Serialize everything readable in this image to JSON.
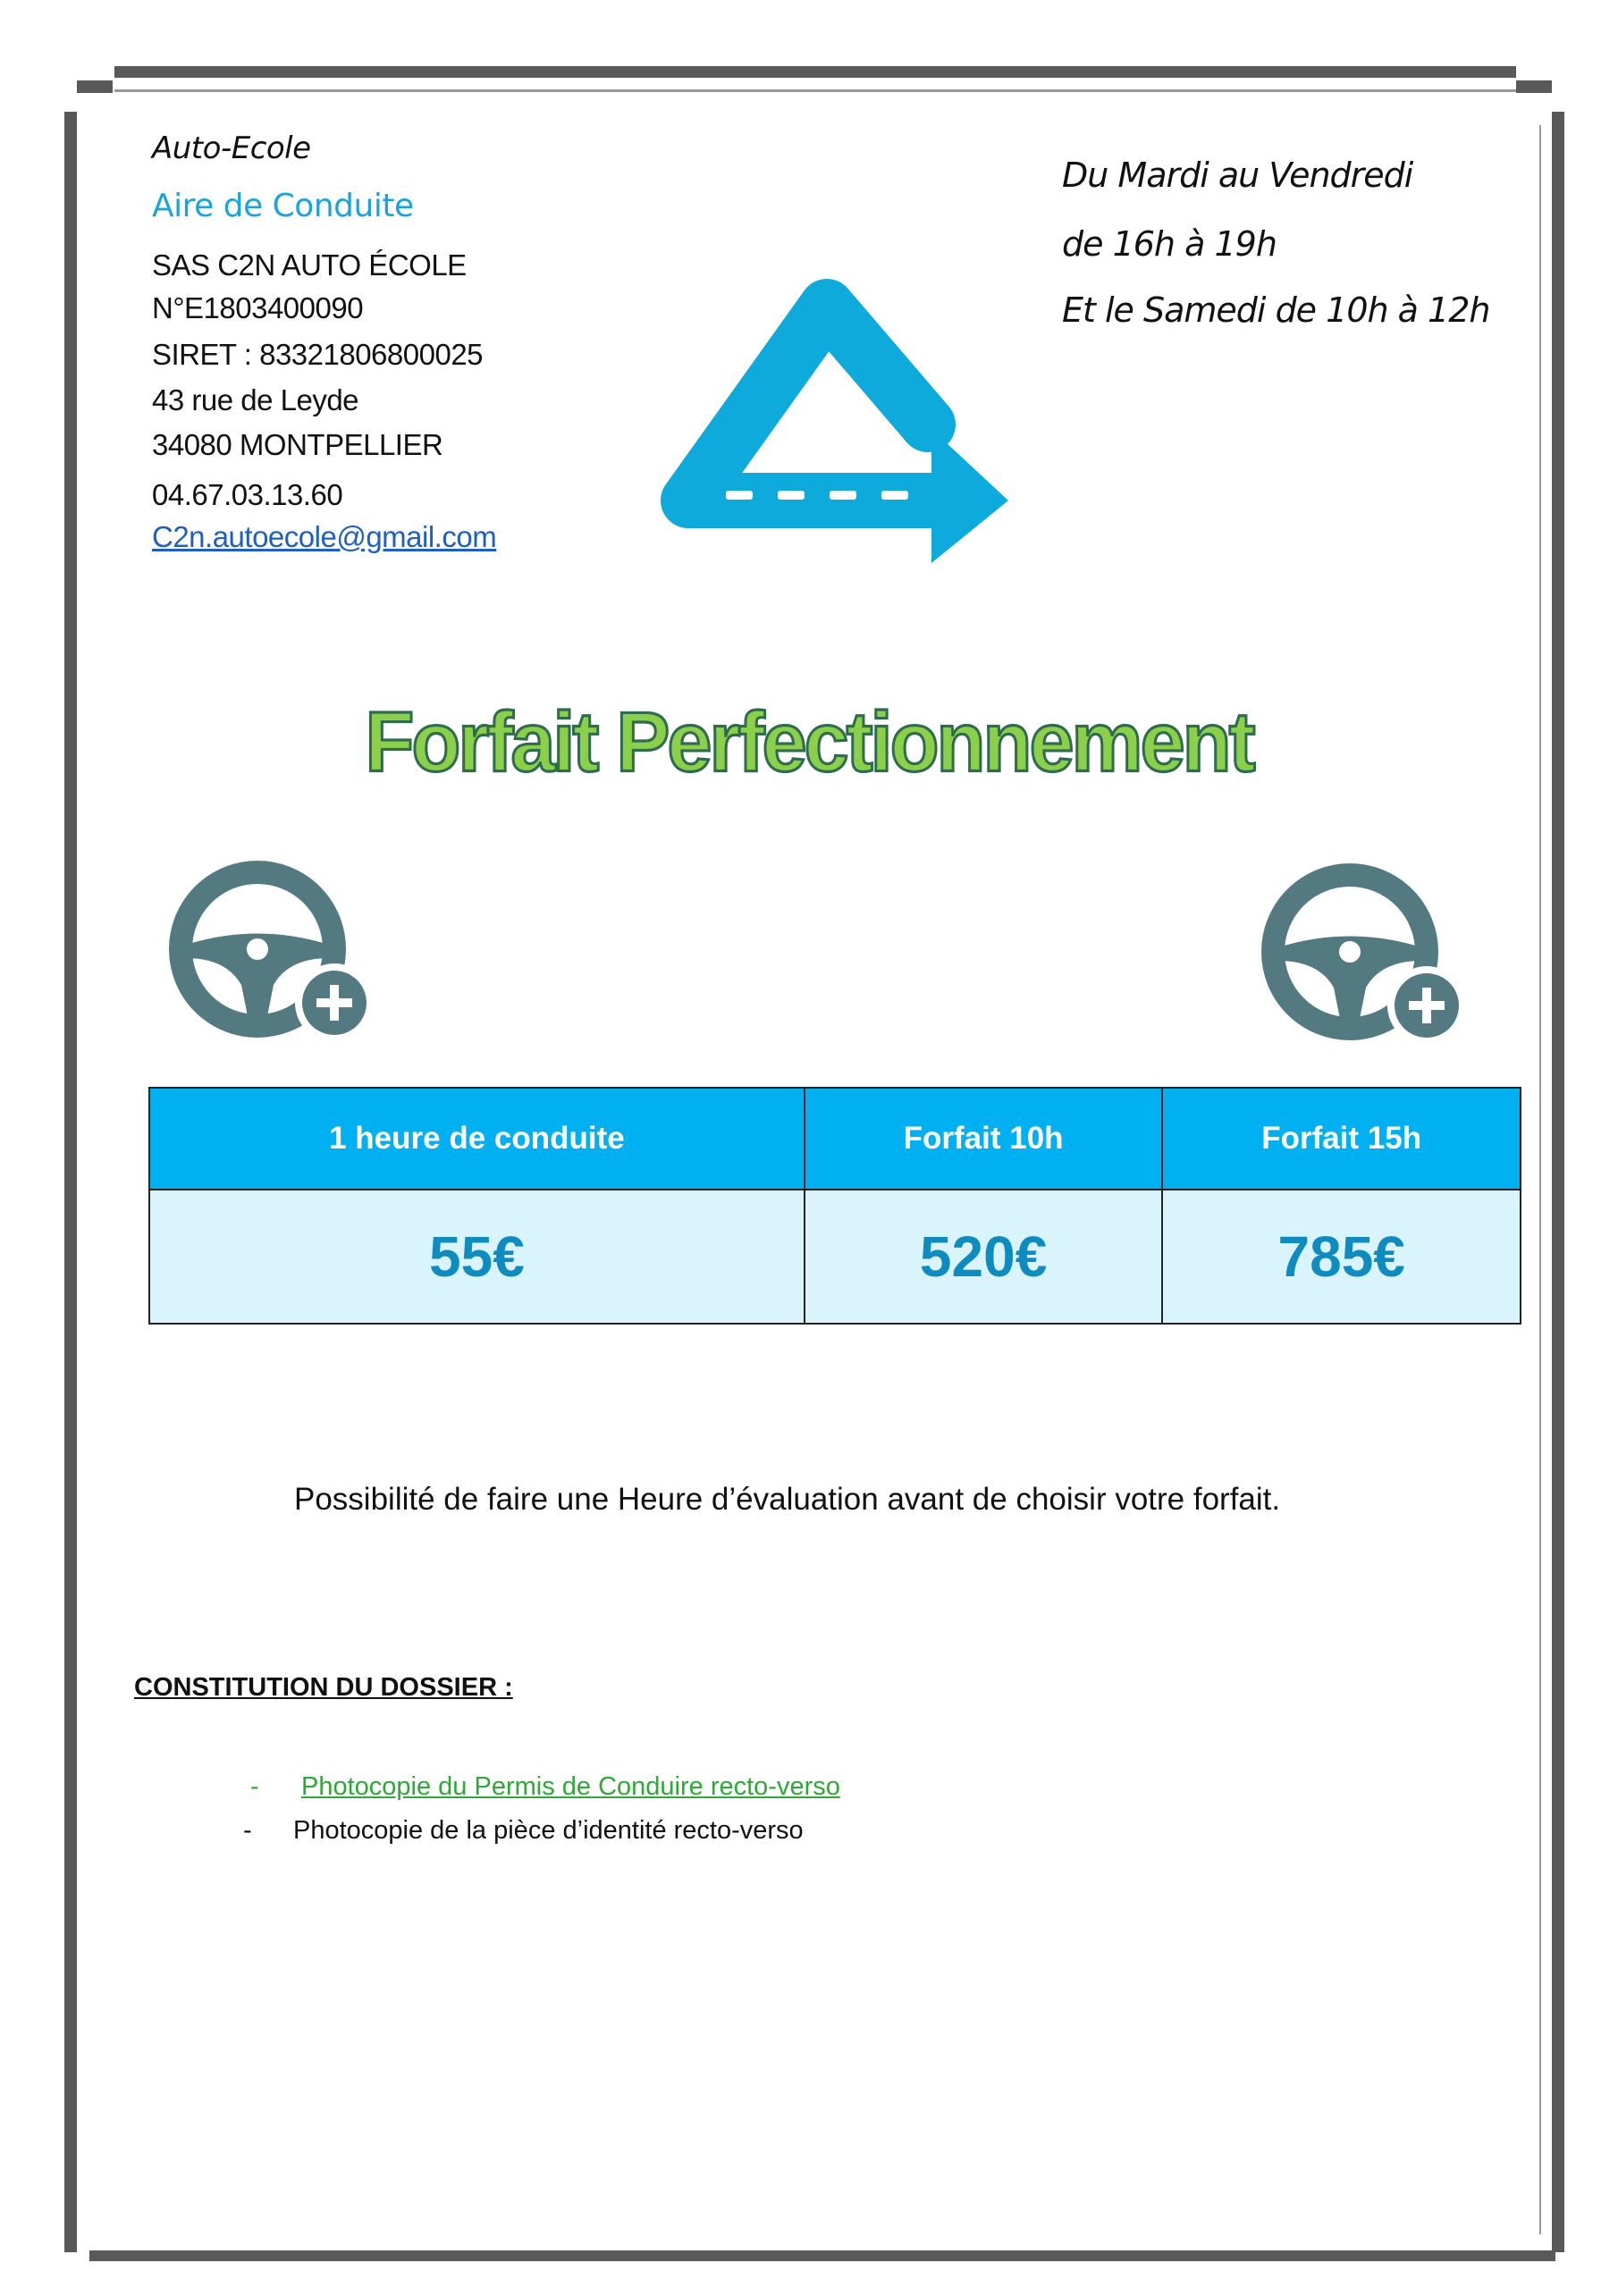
{
  "header": {
    "brand_line1": "Auto-Ecole",
    "brand_line2": "Aire de Conduite",
    "company": "SAS C2N AUTO ÉCOLE",
    "agreement": "N°E1803400090",
    "siret": "SIRET : 83321806800025",
    "street": "43 rue de Leyde",
    "city": "34080 MONTPELLIER",
    "phone": "04.67.03.13.60",
    "email": "C2n.autoecole@gmail.com"
  },
  "hours": {
    "line1": "Du Mardi au Vendredi",
    "line2": "de 16h à 19h",
    "line3": "Et le Samedi de 10h à 12h"
  },
  "title": "Forfait Perfectionnement",
  "pricing": {
    "headers": [
      "1 heure de conduite",
      "Forfait 10h",
      "Forfait 15h"
    ],
    "prices": [
      "55€",
      "520€",
      "785€"
    ]
  },
  "note": "Possibilité de faire une Heure d’évaluation avant de choisir votre forfait.",
  "dossier": {
    "heading": "CONSTITUTION DU DOSSIER :",
    "items": [
      {
        "bullet": "-",
        "text": "Photocopie du Permis de Conduire recto-verso"
      },
      {
        "bullet": "-",
        "text": "Photocopie de la pièce d’identité recto-verso"
      }
    ]
  },
  "colors": {
    "accent_blue": "#00b0f0",
    "title_green": "#8bcf4a",
    "icon_gray": "#527a80",
    "link_green": "#2ea836"
  },
  "icons": [
    "logo-road-arrow",
    "steering-wheel-plus-icon",
    "steering-wheel-plus-icon"
  ]
}
